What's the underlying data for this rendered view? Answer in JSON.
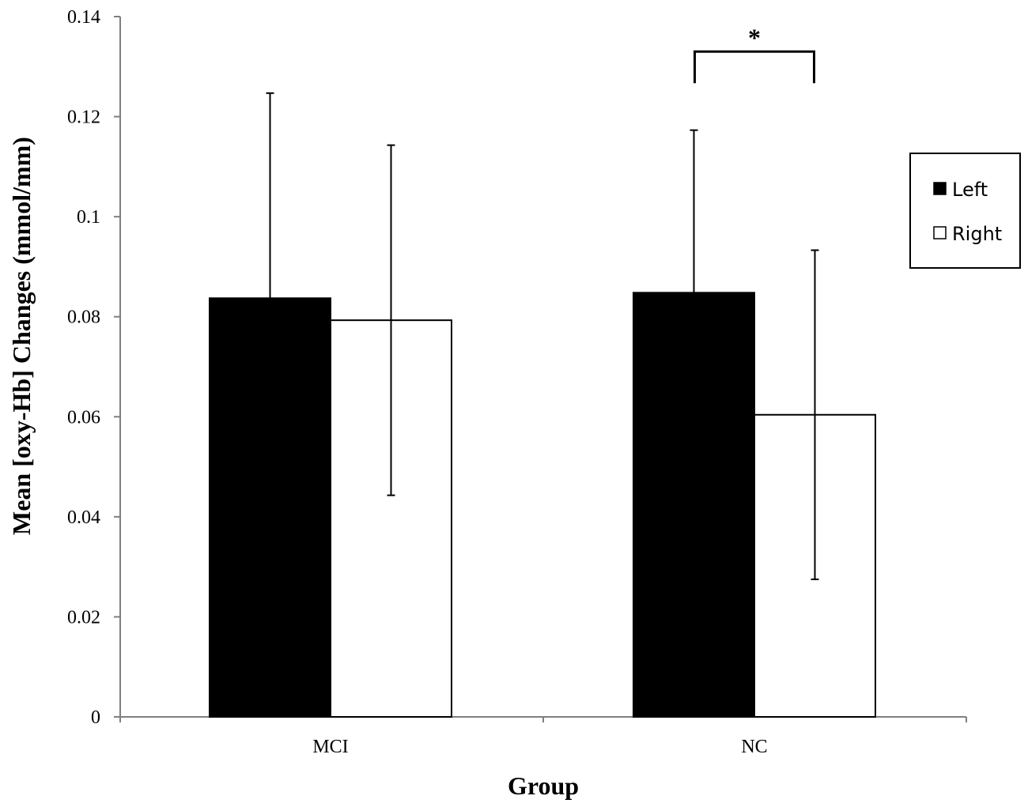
{
  "chart_data": {
    "type": "bar",
    "title": "",
    "xlabel": "Group",
    "ylabel": "Mean [oxy-Hb] Changes (mmol/mm)",
    "categories": [
      "MCI",
      "NC"
    ],
    "series": [
      {
        "name": "Left",
        "color": "#000000",
        "values": [
          0.0837,
          0.0848
        ],
        "error": [
          0.041,
          0.0325
        ]
      },
      {
        "name": "Right",
        "color": "#ffffff",
        "values": [
          0.0793,
          0.0604
        ],
        "error": [
          0.035,
          0.0329
        ]
      }
    ],
    "ylim": [
      0,
      0.14
    ],
    "yticks": [
      "0",
      "0.02",
      "0.04",
      "0.06",
      "0.08",
      "0.1",
      "0.12",
      "0.14"
    ],
    "ytick_values": [
      0,
      0.02,
      0.04,
      0.06,
      0.08,
      0.1,
      0.12,
      0.14
    ],
    "grid": false,
    "legend_position": "right",
    "annotations": [
      {
        "text": "*",
        "category": "NC",
        "type": "significance-bracket",
        "y": 0.133
      }
    ]
  }
}
